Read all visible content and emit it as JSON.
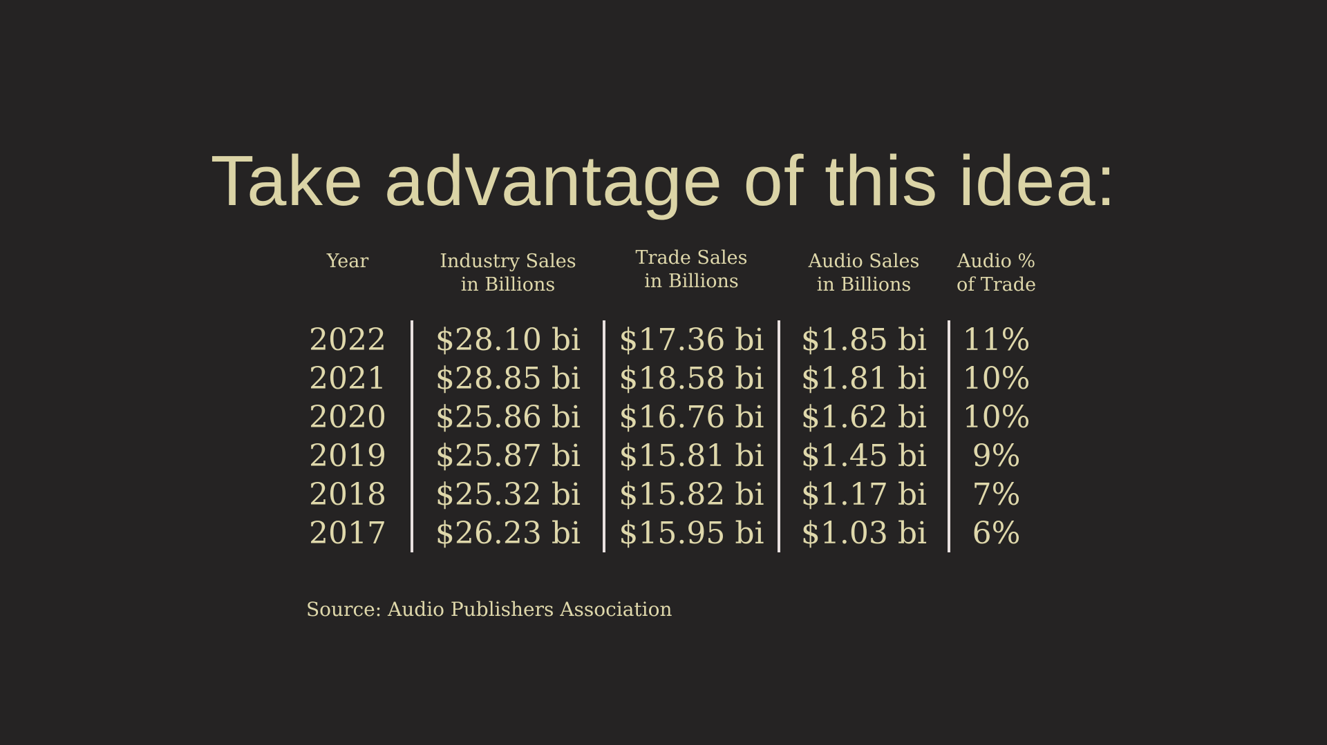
{
  "slide": {
    "title": "Take advantage of this idea:",
    "source_note": "Source: Audio Publishers Association",
    "colors": {
      "background": "#252323",
      "text_cream": "#dfd8ab",
      "divider": "#e8e0df"
    },
    "table": {
      "headers": [
        {
          "line1": "Year",
          "line2": ""
        },
        {
          "line1": "Industry Sales",
          "line2": "in Billions"
        },
        {
          "line1": "Trade Sales",
          "line2": "in Billions"
        },
        {
          "line1": "Audio Sales",
          "line2": "in Billions"
        },
        {
          "line1": "Audio %",
          "line2": "of Trade"
        }
      ],
      "rows": [
        {
          "year": "2022",
          "industry_sales": "$28.10 bi",
          "trade_sales": "$17.36 bi",
          "audio_sales": "$1.85 bi",
          "audio_pct": "11%"
        },
        {
          "year": "2021",
          "industry_sales": "$28.85 bi",
          "trade_sales": "$18.58 bi",
          "audio_sales": "$1.81 bi",
          "audio_pct": "10%"
        },
        {
          "year": "2020",
          "industry_sales": "$25.86 bi",
          "trade_sales": "$16.76 bi",
          "audio_sales": "$1.62 bi",
          "audio_pct": "10%"
        },
        {
          "year": "2019",
          "industry_sales": "$25.87 bi",
          "trade_sales": "$15.81 bi",
          "audio_sales": "$1.45 bi",
          "audio_pct": "9%"
        },
        {
          "year": "2018",
          "industry_sales": "$25.32 bi",
          "trade_sales": "$15.82 bi",
          "audio_sales": "$1.17 bi",
          "audio_pct": "7%"
        },
        {
          "year": "2017",
          "industry_sales": "$26.23 bi",
          "trade_sales": "$15.95 bi",
          "audio_sales": "$1.03 bi",
          "audio_pct": "6%"
        }
      ]
    }
  }
}
